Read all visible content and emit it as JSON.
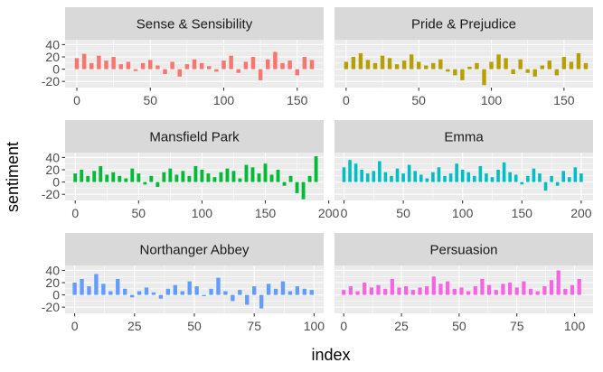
{
  "chart_data": {
    "type": "bar",
    "facet_layout": "2 columns x 3 rows",
    "xlabel": "index",
    "ylabel": "sentiment",
    "ylim": [
      -30,
      48
    ],
    "y_ticks": [
      -20,
      0,
      20,
      40
    ],
    "grid": true,
    "legend": "none",
    "panels": [
      {
        "title": "Sense & Sensibility",
        "color": "#F8766D",
        "x_ticks": [
          0,
          50,
          100,
          150
        ],
        "xlim": [
          -8,
          168
        ],
        "x": [
          0,
          5,
          10,
          15,
          20,
          25,
          30,
          35,
          40,
          45,
          50,
          55,
          60,
          65,
          70,
          75,
          80,
          85,
          90,
          95,
          100,
          105,
          110,
          115,
          120,
          125,
          130,
          135,
          140,
          145,
          150,
          155,
          160
        ],
        "values": [
          18,
          25,
          10,
          22,
          14,
          20,
          8,
          12,
          -3,
          10,
          15,
          6,
          -8,
          12,
          -12,
          8,
          16,
          10,
          5,
          -4,
          14,
          22,
          -6,
          12,
          20,
          -18,
          16,
          28,
          10,
          14,
          -10,
          20,
          15
        ]
      },
      {
        "title": "Pride & Prejudice",
        "color": "#B79F00",
        "x_ticks": [
          0,
          50,
          100,
          150
        ],
        "xlim": [
          -8,
          170
        ],
        "x": [
          0,
          5,
          10,
          15,
          20,
          25,
          30,
          35,
          40,
          45,
          50,
          55,
          60,
          65,
          70,
          75,
          80,
          85,
          90,
          95,
          100,
          105,
          110,
          115,
          120,
          125,
          130,
          135,
          140,
          145,
          150,
          155,
          160,
          165
        ],
        "values": [
          12,
          20,
          26,
          15,
          10,
          22,
          18,
          8,
          14,
          24,
          12,
          6,
          10,
          16,
          -4,
          -10,
          -18,
          4,
          10,
          -26,
          12,
          24,
          18,
          -8,
          16,
          -6,
          -12,
          6,
          14,
          -10,
          20,
          12,
          26,
          10
        ]
      },
      {
        "title": "Mansfield Park",
        "color": "#00BA38",
        "x_ticks": [
          0,
          50,
          100,
          150,
          200
        ],
        "xlim": [
          -8,
          196
        ],
        "x": [
          0,
          5,
          10,
          15,
          20,
          25,
          30,
          35,
          40,
          45,
          50,
          55,
          60,
          65,
          70,
          75,
          80,
          85,
          90,
          95,
          100,
          105,
          110,
          115,
          120,
          125,
          130,
          135,
          140,
          145,
          150,
          155,
          160,
          165,
          170,
          175,
          180,
          185,
          190
        ],
        "values": [
          14,
          20,
          10,
          18,
          26,
          12,
          16,
          10,
          6,
          22,
          14,
          -4,
          10,
          -8,
          16,
          22,
          12,
          18,
          10,
          26,
          20,
          14,
          8,
          16,
          22,
          18,
          6,
          28,
          24,
          14,
          30,
          12,
          20,
          -6,
          10,
          -18,
          -28,
          10,
          42
        ]
      },
      {
        "title": "Emma",
        "color": "#00BFC4",
        "x_ticks": [
          0,
          50,
          100,
          150,
          200
        ],
        "xlim": [
          -8,
          210
        ],
        "x": [
          0,
          5,
          10,
          15,
          20,
          25,
          30,
          35,
          40,
          45,
          50,
          55,
          60,
          65,
          70,
          75,
          80,
          85,
          90,
          95,
          100,
          105,
          110,
          115,
          120,
          125,
          130,
          135,
          140,
          145,
          150,
          155,
          160,
          165,
          170,
          175,
          180,
          185,
          190,
          195,
          200
        ],
        "values": [
          24,
          36,
          30,
          20,
          14,
          18,
          34,
          16,
          10,
          22,
          14,
          28,
          18,
          12,
          6,
          16,
          24,
          10,
          14,
          30,
          20,
          16,
          10,
          26,
          14,
          8,
          20,
          32,
          16,
          12,
          -4,
          10,
          22,
          14,
          -14,
          10,
          -6,
          18,
          8,
          24,
          14
        ]
      },
      {
        "title": "Northanger Abbey",
        "color": "#619CFF",
        "x_ticks": [
          0,
          25,
          50,
          75,
          100
        ],
        "xlim": [
          -4,
          104
        ],
        "x": [
          0,
          3,
          6,
          9,
          12,
          15,
          18,
          21,
          24,
          27,
          30,
          33,
          36,
          39,
          42,
          45,
          48,
          51,
          54,
          57,
          60,
          63,
          66,
          69,
          72,
          75,
          78,
          81,
          84,
          87,
          90,
          93,
          96,
          99
        ],
        "values": [
          20,
          26,
          14,
          34,
          18,
          6,
          26,
          10,
          -4,
          6,
          12,
          4,
          -6,
          10,
          16,
          6,
          22,
          14,
          -2,
          10,
          28,
          6,
          -10,
          8,
          -16,
          14,
          -22,
          18,
          10,
          22,
          6,
          14,
          10,
          8
        ]
      },
      {
        "title": "Persuasion",
        "color": "#F564E3",
        "x_ticks": [
          0,
          25,
          50,
          75,
          100
        ],
        "xlim": [
          -4,
          108
        ],
        "x": [
          0,
          3,
          6,
          9,
          12,
          15,
          18,
          21,
          24,
          27,
          30,
          33,
          36,
          39,
          42,
          45,
          48,
          51,
          54,
          57,
          60,
          63,
          66,
          69,
          72,
          75,
          78,
          81,
          84,
          87,
          90,
          93,
          96,
          99,
          102
        ],
        "values": [
          8,
          14,
          6,
          20,
          12,
          16,
          10,
          26,
          12,
          14,
          8,
          12,
          14,
          30,
          18,
          22,
          10,
          12,
          6,
          14,
          26,
          16,
          8,
          18,
          20,
          12,
          22,
          10,
          6,
          14,
          24,
          40,
          10,
          16,
          26
        ]
      }
    ]
  }
}
